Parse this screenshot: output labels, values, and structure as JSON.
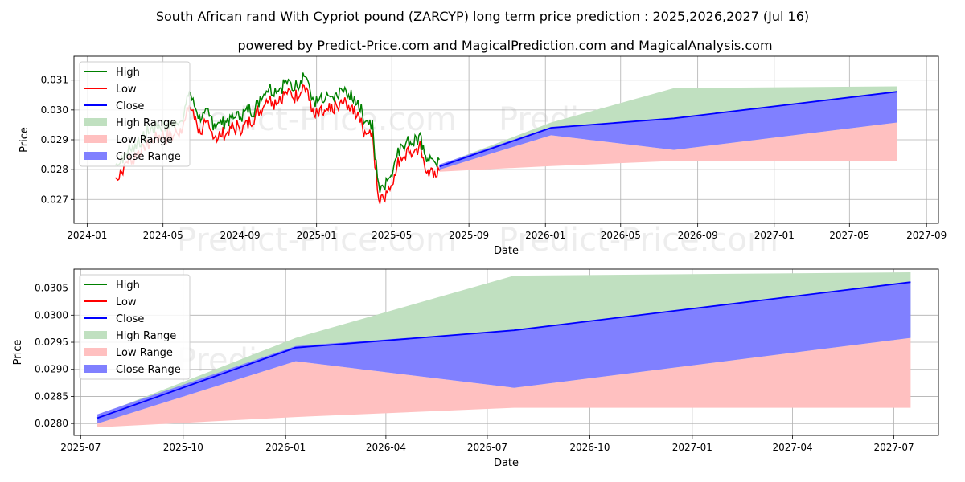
{
  "title": "South African rand With Cypriot pound (ZARCYP) long term price prediction : 2025,2026,2027 (Jul 16)",
  "subtitle": "powered by Predict-Price.com and MagicalPrediction.com and MagicalAnalysis.com",
  "watermark": "Predict-Price.com",
  "colors": {
    "high": "#008000",
    "low": "#ff0000",
    "close": "#0000ff",
    "high_range": "#c0e0c0",
    "low_range": "#ffc0c0",
    "close_range": "#8080ff"
  },
  "legend": [
    "High",
    "Low",
    "Close",
    "High Range",
    "Low Range",
    "Close Range"
  ],
  "chart_data": [
    {
      "type": "line",
      "name": "historical-and-forecast",
      "xlabel": "Date",
      "ylabel": "Price",
      "xlim": [
        "2023-12-11",
        "2027-09-20"
      ],
      "ylim": [
        0.0262,
        0.0318
      ],
      "x_ticks": [
        "2024-01",
        "2024-05",
        "2024-09",
        "2025-01",
        "2025-05",
        "2025-09",
        "2026-01",
        "2026-05",
        "2026-09",
        "2027-01",
        "2027-05",
        "2027-09"
      ],
      "y_ticks": [
        "0.027",
        "0.028",
        "0.029",
        "0.030",
        "0.031"
      ],
      "legend_position": "top-left",
      "grid": true,
      "history_close": [
        [
          "2024-02-15",
          0.0279
        ],
        [
          "2024-02-25",
          0.0282
        ],
        [
          "2024-03-10",
          0.0285
        ],
        [
          "2024-03-25",
          0.0288
        ],
        [
          "2024-04-10",
          0.0291
        ],
        [
          "2024-04-25",
          0.0293
        ],
        [
          "2024-05-10",
          0.0293
        ],
        [
          "2024-05-25",
          0.0294
        ],
        [
          "2024-06-05",
          0.0298
        ],
        [
          "2024-06-12",
          0.0304
        ],
        [
          "2024-06-20",
          0.03
        ],
        [
          "2024-06-28",
          0.0295
        ],
        [
          "2024-07-10",
          0.0297
        ],
        [
          "2024-07-20",
          0.0294
        ],
        [
          "2024-08-01",
          0.0293
        ],
        [
          "2024-08-12",
          0.0295
        ],
        [
          "2024-08-25",
          0.0296
        ],
        [
          "2024-09-10",
          0.0297
        ],
        [
          "2024-09-25",
          0.0299
        ],
        [
          "2024-10-05",
          0.0303
        ],
        [
          "2024-10-15",
          0.0306
        ],
        [
          "2024-10-25",
          0.0305
        ],
        [
          "2024-11-05",
          0.0306
        ],
        [
          "2024-11-15",
          0.0308
        ],
        [
          "2024-11-25",
          0.0306
        ],
        [
          "2024-12-05",
          0.0308
        ],
        [
          "2024-12-12",
          0.031
        ],
        [
          "2024-12-18",
          0.0307
        ],
        [
          "2024-12-28",
          0.03
        ],
        [
          "2025-01-10",
          0.0301
        ],
        [
          "2025-01-25",
          0.0302
        ],
        [
          "2025-02-05",
          0.0303
        ],
        [
          "2025-02-15",
          0.0305
        ],
        [
          "2025-02-25",
          0.0302
        ],
        [
          "2025-03-08",
          0.0301
        ],
        [
          "2025-03-15",
          0.0296
        ],
        [
          "2025-03-25",
          0.0294
        ],
        [
          "2025-03-31",
          0.0293
        ],
        [
          "2025-04-04",
          0.0283
        ],
        [
          "2025-04-08",
          0.0276
        ],
        [
          "2025-04-12",
          0.0271
        ],
        [
          "2025-04-18",
          0.0273
        ],
        [
          "2025-04-28",
          0.0276
        ],
        [
          "2025-05-05",
          0.028
        ],
        [
          "2025-05-15",
          0.0286
        ],
        [
          "2025-05-25",
          0.0288
        ],
        [
          "2025-06-05",
          0.0288
        ],
        [
          "2025-06-15",
          0.0289
        ],
        [
          "2025-06-22",
          0.0283
        ],
        [
          "2025-07-01",
          0.0281
        ],
        [
          "2025-07-10",
          0.0281
        ],
        [
          "2025-07-16",
          0.0281
        ]
      ],
      "forecast_dates": [
        "2025-07-16",
        "2026-01-10",
        "2026-07-25",
        "2027-07-16"
      ],
      "close": [
        0.0281,
        0.0294,
        0.02972,
        0.03061
      ],
      "high_range": {
        "upper": [
          0.02815,
          0.02958,
          0.03073,
          0.03079
        ],
        "lower": [
          0.02795,
          0.02935,
          0.02866,
          0.02958
        ]
      },
      "low_range": {
        "upper": [
          0.028,
          0.02915,
          0.02866,
          0.02958
        ],
        "lower": [
          0.02793,
          0.02812,
          0.02829,
          0.02829
        ]
      },
      "close_range": {
        "upper": [
          0.02817,
          0.02943,
          0.02972,
          0.03061
        ],
        "lower": [
          0.028,
          0.02915,
          0.02866,
          0.02958
        ]
      }
    },
    {
      "type": "line",
      "name": "forecast-zoom",
      "xlabel": "Date",
      "ylabel": "Price",
      "xlim": [
        "2025-06-25",
        "2027-08-10"
      ],
      "ylim": [
        0.02778,
        0.03085
      ],
      "x_ticks": [
        "2025-07",
        "2025-10",
        "2026-01",
        "2026-04",
        "2026-07",
        "2026-10",
        "2027-01",
        "2027-04",
        "2027-07"
      ],
      "y_ticks": [
        "0.0280",
        "0.0285",
        "0.0290",
        "0.0295",
        "0.0300",
        "0.0305"
      ],
      "legend_position": "top-left",
      "grid": true
    }
  ]
}
